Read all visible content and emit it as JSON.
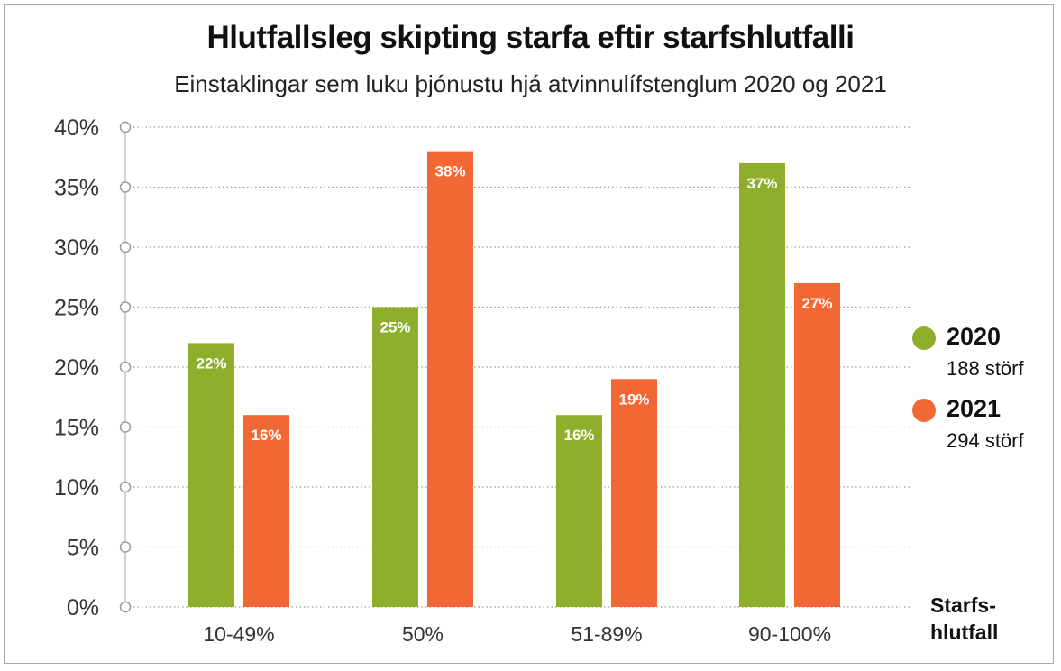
{
  "chart_data": {
    "type": "bar",
    "title": "Hlutfallsleg skipting starfa eftir starfshlutfalli",
    "subtitle": "Einstaklingar sem luku þjónustu hjá atvinnulífstenglum 2020 og 2021",
    "categories": [
      "10-49%",
      "50%",
      "51-89%",
      "90-100%"
    ],
    "series": [
      {
        "name": "2020",
        "note": "188 störf",
        "color": "#8fae2c",
        "values": [
          22,
          25,
          16,
          37
        ],
        "labels": [
          "22%",
          "25%",
          "16%",
          "37%"
        ]
      },
      {
        "name": "2021",
        "note": "294 störf",
        "color": "#f26835",
        "values": [
          16,
          38,
          19,
          27
        ],
        "labels": [
          "16%",
          "38%",
          "19%",
          "27%"
        ]
      }
    ],
    "yticks": [
      "0%",
      "5%",
      "10%",
      "15%",
      "20%",
      "25%",
      "30%",
      "35%",
      "40%"
    ],
    "ylim": [
      0,
      40
    ],
    "xlabel_lines": [
      "Starfs-",
      "hlutfall"
    ],
    "ylabel": "",
    "grid": "dotted horizontal",
    "legend_position": "right"
  }
}
